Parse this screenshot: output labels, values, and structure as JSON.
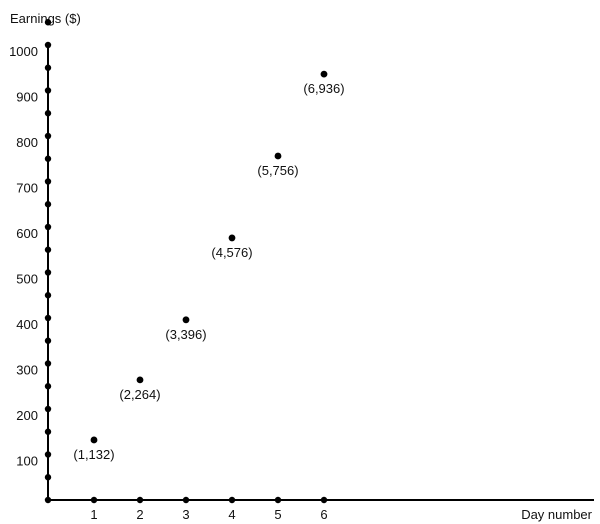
{
  "chart_data": {
    "type": "scatter",
    "title": "",
    "ylabel": "Earnings ($)",
    "xlabel": "Day number",
    "xlim": [
      0,
      12
    ],
    "ylim": [
      0,
      1000
    ],
    "x_ticks": [
      1,
      2,
      3,
      4,
      5,
      6
    ],
    "y_ticks": [
      100,
      200,
      300,
      400,
      500,
      600,
      700,
      800,
      900,
      1000
    ],
    "grid": false,
    "points": [
      {
        "x": 1,
        "y": 132,
        "label": "(1,132)"
      },
      {
        "x": 2,
        "y": 264,
        "label": "(2,264)"
      },
      {
        "x": 3,
        "y": 396,
        "label": "(3,396)"
      },
      {
        "x": 4,
        "y": 576,
        "label": "(4,576)"
      },
      {
        "x": 5,
        "y": 756,
        "label": "(5,756)"
      },
      {
        "x": 6,
        "y": 936,
        "label": "(6,936)"
      }
    ],
    "colors": {
      "ink": "#000000",
      "text": "#111111"
    }
  }
}
